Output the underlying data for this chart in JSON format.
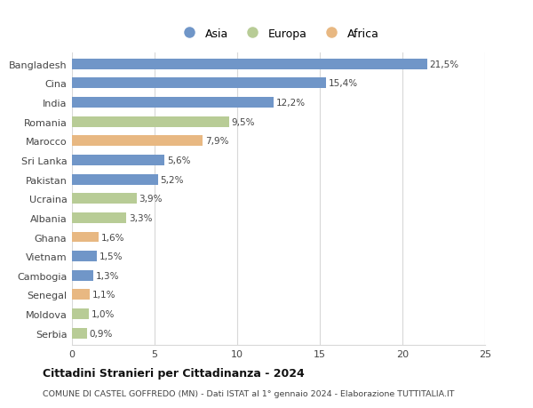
{
  "countries": [
    "Bangladesh",
    "Cina",
    "India",
    "Romania",
    "Marocco",
    "Sri Lanka",
    "Pakistan",
    "Ucraina",
    "Albania",
    "Ghana",
    "Vietnam",
    "Cambogia",
    "Senegal",
    "Moldova",
    "Serbia"
  ],
  "values": [
    21.5,
    15.4,
    12.2,
    9.5,
    7.9,
    5.6,
    5.2,
    3.9,
    3.3,
    1.6,
    1.5,
    1.3,
    1.1,
    1.0,
    0.9
  ],
  "labels": [
    "21,5%",
    "15,4%",
    "12,2%",
    "9,5%",
    "7,9%",
    "5,6%",
    "5,2%",
    "3,9%",
    "3,3%",
    "1,6%",
    "1,5%",
    "1,3%",
    "1,1%",
    "1,0%",
    "0,9%"
  ],
  "continents": [
    "Asia",
    "Asia",
    "Asia",
    "Europa",
    "Africa",
    "Asia",
    "Asia",
    "Europa",
    "Europa",
    "Africa",
    "Asia",
    "Asia",
    "Africa",
    "Europa",
    "Europa"
  ],
  "colors": {
    "Asia": "#7096c8",
    "Europa": "#b8cc96",
    "Africa": "#e8b882"
  },
  "legend_labels": [
    "Asia",
    "Europa",
    "Africa"
  ],
  "title": "Cittadini Stranieri per Cittadinanza - 2024",
  "subtitle": "COMUNE DI CASTEL GOFFREDO (MN) - Dati ISTAT al 1° gennaio 2024 - Elaborazione TUTTITALIA.IT",
  "xlim": [
    0,
    25
  ],
  "xticks": [
    0,
    5,
    10,
    15,
    20,
    25
  ],
  "background_color": "#ffffff",
  "grid_color": "#d8d8d8",
  "bar_height": 0.55,
  "figsize": [
    6.0,
    4.6
  ],
  "dpi": 100
}
